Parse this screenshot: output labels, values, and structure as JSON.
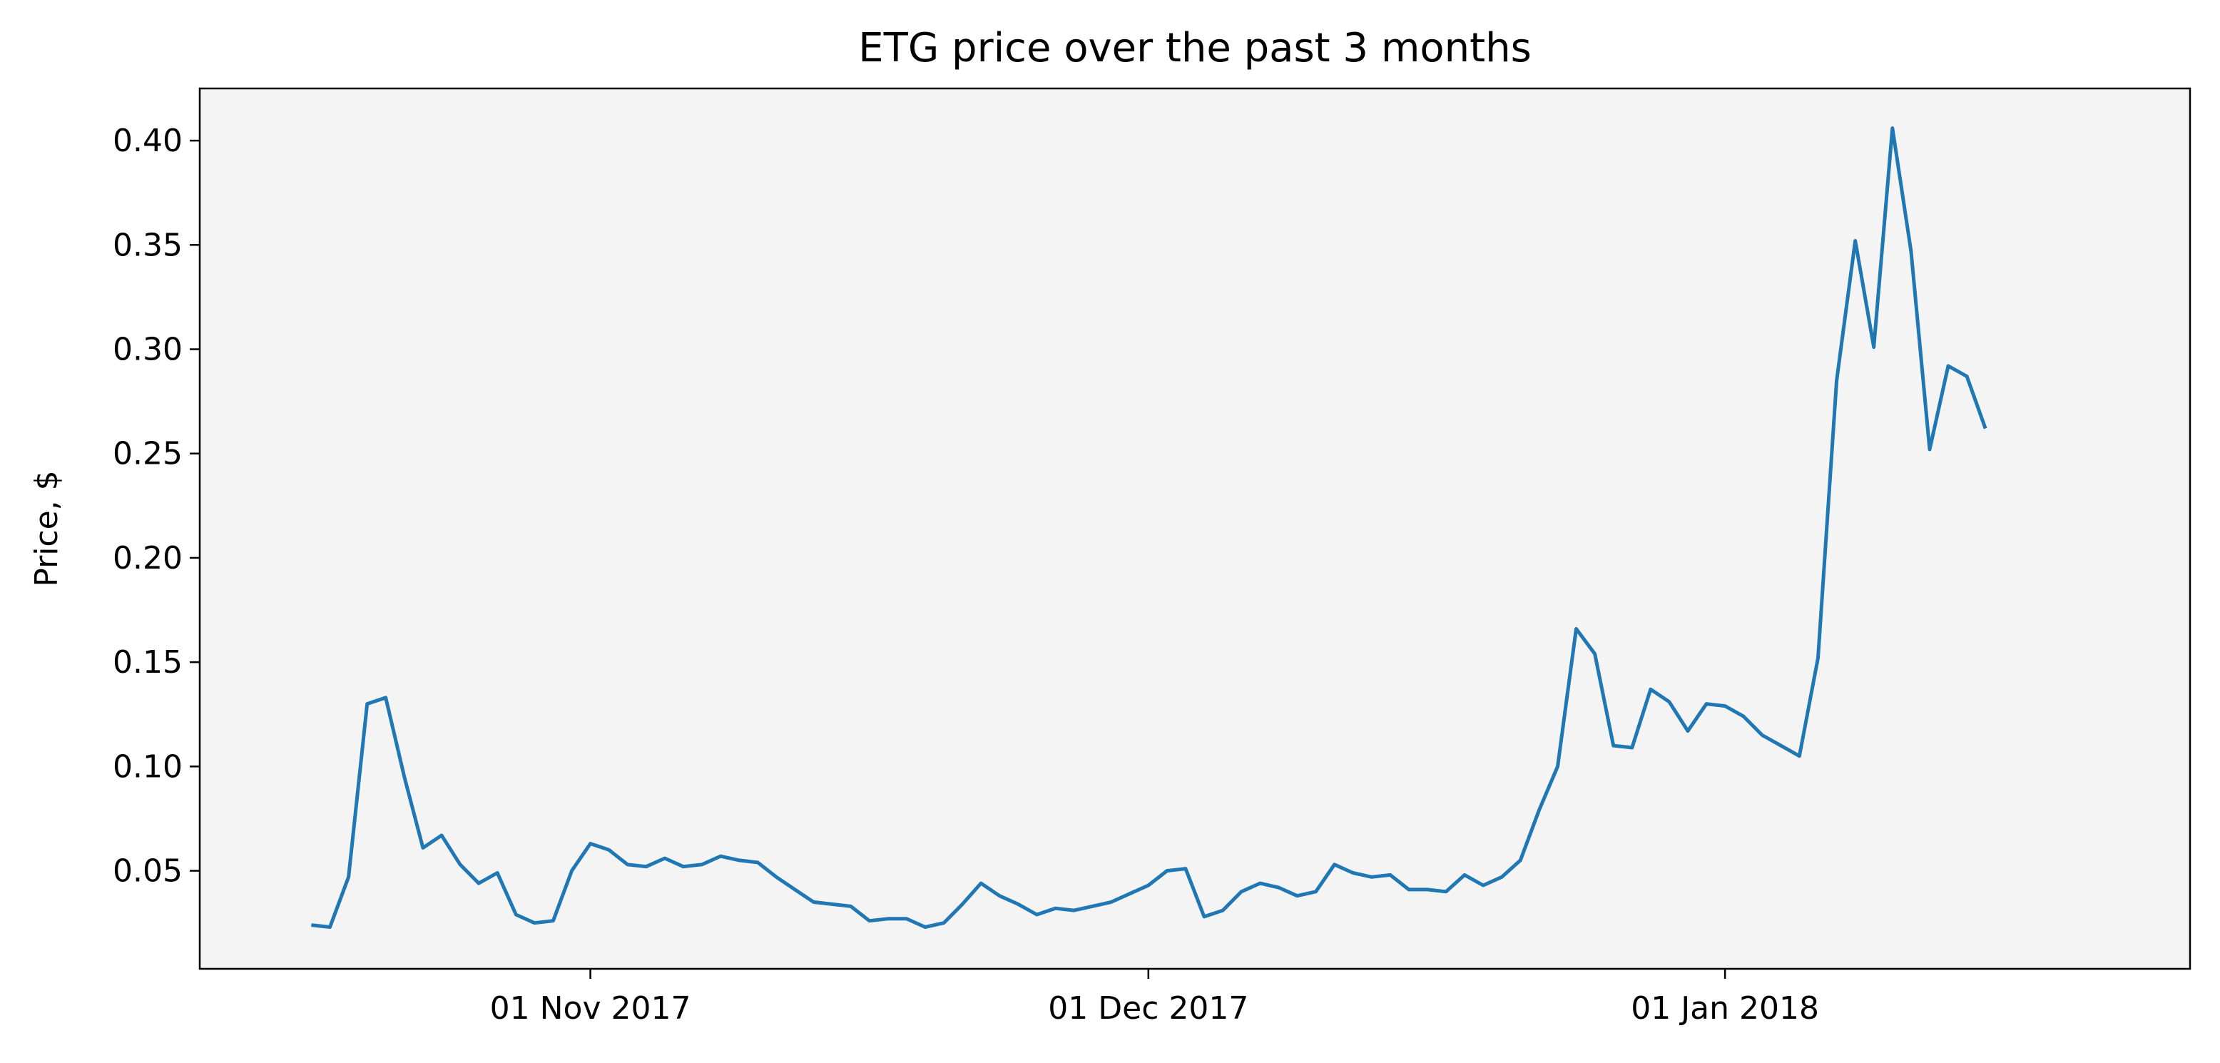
{
  "chart_data": {
    "type": "line",
    "title": "ETG price over the past 3 months",
    "xlabel": "",
    "ylabel": "Price, $",
    "x_start": "2017-10-17",
    "x_end": "2018-01-21",
    "xlim": [
      "2017-10-11",
      "2018-01-26"
    ],
    "ylim": [
      0.003,
      0.425
    ],
    "grid": false,
    "plot_background": "#f4f4f4",
    "line_color": "#1f77b4",
    "x_ticks": [
      {
        "date": "2017-11-01",
        "label": "01 Nov 2017"
      },
      {
        "date": "2017-12-01",
        "label": "01 Dec 2017"
      },
      {
        "date": "2018-01-01",
        "label": "01 Jan 2018"
      }
    ],
    "y_ticks": [
      {
        "value": 0.05,
        "label": "0.05"
      },
      {
        "value": 0.1,
        "label": "0.10"
      },
      {
        "value": 0.15,
        "label": "0.15"
      },
      {
        "value": 0.2,
        "label": "0.20"
      },
      {
        "value": 0.25,
        "label": "0.25"
      },
      {
        "value": 0.3,
        "label": "0.30"
      },
      {
        "value": 0.35,
        "label": "0.35"
      },
      {
        "value": 0.4,
        "label": "0.40"
      }
    ],
    "series": [
      {
        "name": "",
        "values": [
          0.024,
          0.023,
          0.047,
          0.13,
          0.133,
          0.095,
          0.061,
          0.067,
          0.053,
          0.044,
          0.049,
          0.029,
          0.025,
          0.026,
          0.05,
          0.063,
          0.06,
          0.053,
          0.052,
          0.056,
          0.052,
          0.053,
          0.057,
          0.055,
          0.054,
          0.047,
          0.041,
          0.035,
          0.034,
          0.033,
          0.026,
          0.027,
          0.027,
          0.023,
          0.025,
          0.034,
          0.044,
          0.038,
          0.034,
          0.029,
          0.032,
          0.031,
          0.033,
          0.035,
          0.039,
          0.043,
          0.05,
          0.051,
          0.028,
          0.031,
          0.04,
          0.044,
          0.042,
          0.038,
          0.04,
          0.053,
          0.049,
          0.047,
          0.048,
          0.041,
          0.041,
          0.04,
          0.048,
          0.043,
          0.047,
          0.055,
          0.079,
          0.1,
          0.166,
          0.154,
          0.11,
          0.109,
          0.137,
          0.131,
          0.117,
          0.13,
          0.129,
          0.124,
          0.115,
          0.11,
          0.105,
          0.152,
          0.285,
          0.352,
          0.301,
          0.406,
          0.347,
          0.252,
          0.292,
          0.287,
          0.262
        ]
      }
    ]
  }
}
